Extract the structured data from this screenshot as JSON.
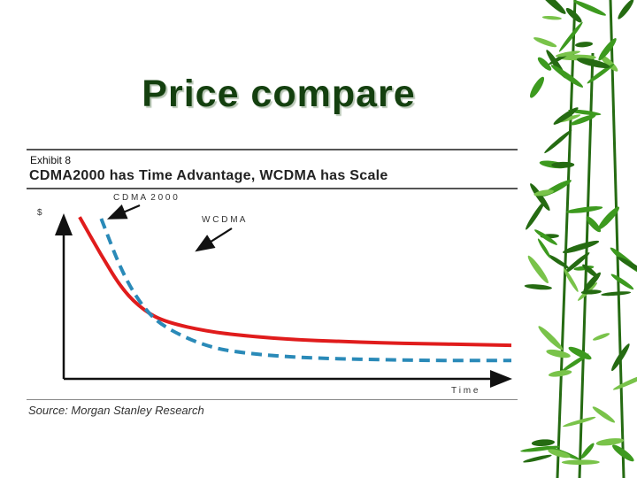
{
  "slide": {
    "title": "Price compare"
  },
  "exhibit": {
    "label": "Exhibit 8",
    "headline": "CDMA2000 has Time Advantage, WCDMA has Scale",
    "source": "Source: Morgan Stanley Research"
  },
  "chart_data": {
    "type": "line",
    "title": "CDMA2000 has Time Advantage, WCDMA has Scale",
    "ylabel": "$",
    "xlabel": "T i m e",
    "grid": false,
    "axes_ticks": false,
    "annotations": [
      {
        "text": "C D M A  2 0 0 0",
        "points_to": "CDMA2000"
      },
      {
        "text": "W C D M A",
        "points_to": "WCDMA"
      }
    ],
    "x": [
      0,
      0.05,
      0.1,
      0.15,
      0.2,
      0.3,
      0.4,
      0.5,
      0.6,
      0.7,
      0.8,
      0.9,
      1.0
    ],
    "series": [
      {
        "name": "CDMA2000",
        "color": "#e01c1c",
        "style": "solid",
        "values": [
          0.96,
          0.72,
          0.5,
          0.37,
          0.3,
          0.24,
          0.21,
          0.19,
          0.18,
          0.17,
          0.165,
          0.16,
          0.155
        ]
      },
      {
        "name": "WCDMA",
        "color": "#2a8ab8",
        "style": "dashed",
        "values": [
          null,
          0.95,
          0.6,
          0.38,
          0.26,
          0.14,
          0.1,
          0.08,
          0.07,
          0.065,
          0.06,
          0.06,
          0.06
        ]
      }
    ],
    "xlim": [
      0,
      1
    ],
    "ylim": [
      0,
      1
    ]
  },
  "theme": {
    "title_color": "#14400f",
    "bamboo_leaf": "#3d9a1f",
    "bamboo_leaf_dark": "#256b12",
    "bamboo_leaf_light": "#79c34a"
  }
}
